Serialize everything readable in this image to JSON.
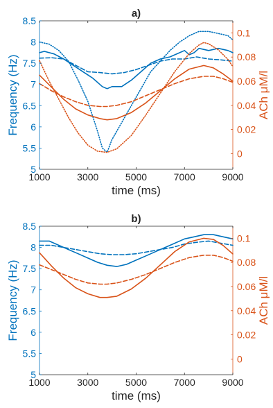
{
  "figure": {
    "colors": {
      "left_axis": "#0072BD",
      "right_axis": "#D95319",
      "text": "#262626",
      "background": "#ffffff"
    }
  },
  "chart_data": [
    {
      "type": "line",
      "title": "a)",
      "xlabel": "time (ms)",
      "ylabel_left": "Frequency (Hz)",
      "ylabel_right": "ACh μM/l",
      "xlim": [
        1000,
        9000
      ],
      "ylim_left": [
        5,
        8.5
      ],
      "ylim_right": [
        -0.013,
        0.11
      ],
      "xticks": [
        "1000",
        "3000",
        "5000",
        "7000",
        "9000"
      ],
      "xtick_values": [
        1000,
        3000,
        5000,
        7000,
        9000
      ],
      "yticks_left": [
        "5",
        "5.5",
        "6",
        "6.5",
        "7",
        "7.5",
        "8",
        "8.5"
      ],
      "ytick_values_left": [
        5,
        5.5,
        6,
        6.5,
        7,
        7.5,
        8,
        8.5
      ],
      "yticks_right": [
        "0",
        "0.02",
        "0.04",
        "0.06",
        "0.08",
        "0.1"
      ],
      "ytick_values_right": [
        0,
        0.02,
        0.04,
        0.06,
        0.08,
        0.1
      ],
      "grid": false,
      "legend": "none",
      "series": [
        {
          "axis": "left",
          "style": "solid",
          "color": "#0072BD",
          "x": [
            1000,
            1200,
            1600,
            2000,
            2400,
            2800,
            3200,
            3600,
            3800,
            4000,
            4400,
            4800,
            5200,
            5600,
            6000,
            6400,
            6800,
            7000,
            7200,
            7400,
            7600,
            8000,
            8400,
            8800,
            9000
          ],
          "y": [
            7.75,
            7.78,
            7.72,
            7.6,
            7.45,
            7.3,
            7.15,
            6.95,
            6.9,
            6.95,
            6.95,
            7.1,
            7.3,
            7.5,
            7.6,
            7.65,
            7.75,
            7.8,
            7.7,
            7.75,
            7.85,
            7.8,
            7.85,
            7.8,
            7.75
          ]
        },
        {
          "axis": "left",
          "style": "dashed",
          "color": "#0072BD",
          "x": [
            1000,
            1500,
            2000,
            2500,
            3000,
            3500,
            4000,
            4500,
            5000,
            5500,
            6000,
            6500,
            7000,
            7500,
            8000,
            8500,
            9000
          ],
          "y": [
            7.62,
            7.63,
            7.6,
            7.45,
            7.3,
            7.28,
            7.25,
            7.28,
            7.35,
            7.45,
            7.55,
            7.6,
            7.6,
            7.65,
            7.6,
            7.58,
            7.55
          ]
        },
        {
          "axis": "left",
          "style": "dotted",
          "color": "#0072BD",
          "x": [
            1000,
            1400,
            1800,
            2200,
            2600,
            3000,
            3400,
            3600,
            3800,
            4000,
            4400,
            4800,
            5200,
            5600,
            6000,
            6400,
            6800,
            7200,
            7600,
            8000,
            8400,
            8800,
            9000
          ],
          "y": [
            8.0,
            7.95,
            7.8,
            7.55,
            7.1,
            6.6,
            5.9,
            5.5,
            5.4,
            5.7,
            6.1,
            6.5,
            6.9,
            7.3,
            7.55,
            7.8,
            8.0,
            8.15,
            8.25,
            8.25,
            8.2,
            8.15,
            8.05
          ]
        },
        {
          "axis": "right",
          "style": "solid",
          "color": "#D95319",
          "x": [
            1000,
            1500,
            2000,
            2500,
            3000,
            3500,
            3800,
            4200,
            4800,
            5400,
            6000,
            6600,
            7200,
            7800,
            8200,
            8600,
            9000
          ],
          "y": [
            0.065,
            0.055,
            0.045,
            0.037,
            0.032,
            0.029,
            0.028,
            0.029,
            0.034,
            0.042,
            0.052,
            0.062,
            0.07,
            0.073,
            0.071,
            0.066,
            0.06
          ]
        },
        {
          "axis": "right",
          "style": "dashed",
          "color": "#D95319",
          "x": [
            1000,
            1500,
            2000,
            2500,
            3000,
            3500,
            3800,
            4200,
            4800,
            5400,
            6000,
            6600,
            7200,
            7800,
            8200,
            8600,
            9000
          ],
          "y": [
            0.058,
            0.052,
            0.047,
            0.043,
            0.04,
            0.039,
            0.039,
            0.04,
            0.043,
            0.048,
            0.053,
            0.058,
            0.062,
            0.064,
            0.064,
            0.062,
            0.059
          ]
        },
        {
          "axis": "right",
          "style": "dotted",
          "color": "#D95319",
          "x": [
            1000,
            1400,
            1800,
            2200,
            2600,
            3000,
            3400,
            3800,
            4200,
            4800,
            5400,
            6000,
            6600,
            7200,
            7600,
            7800,
            8000,
            8400,
            8800,
            9000
          ],
          "y": [
            0.077,
            0.06,
            0.045,
            0.03,
            0.017,
            0.007,
            0.002,
            0.001,
            0.004,
            0.015,
            0.032,
            0.05,
            0.068,
            0.083,
            0.09,
            0.092,
            0.091,
            0.086,
            0.078,
            0.072
          ]
        }
      ]
    },
    {
      "type": "line",
      "title": "b)",
      "xlabel": "time (ms)",
      "ylabel_left": "Frequency (Hz)",
      "ylabel_right": "ACh μM/l",
      "xlim": [
        1000,
        9000
      ],
      "ylim_left": [
        5,
        8.5
      ],
      "ylim_right": [
        -0.013,
        0.11
      ],
      "xticks": [
        "1000",
        "3000",
        "5000",
        "7000",
        "9000"
      ],
      "xtick_values": [
        1000,
        3000,
        5000,
        7000,
        9000
      ],
      "yticks_left": [
        "5",
        "5.5",
        "6",
        "6.5",
        "7",
        "7.5",
        "8",
        "8.5"
      ],
      "ytick_values_left": [
        5,
        5.5,
        6,
        6.5,
        7,
        7.5,
        8,
        8.5
      ],
      "yticks_right": [
        "0",
        "0.02",
        "0.04",
        "0.06",
        "0.08",
        "0.1"
      ],
      "ytick_values_right": [
        0,
        0.02,
        0.04,
        0.06,
        0.08,
        0.1
      ],
      "grid": false,
      "legend": "none",
      "series": [
        {
          "axis": "left",
          "style": "solid",
          "color": "#0072BD",
          "x": [
            1000,
            1400,
            1800,
            2200,
            2600,
            3000,
            3400,
            3800,
            4200,
            4600,
            5000,
            5400,
            5800,
            6200,
            6600,
            7000,
            7400,
            7800,
            8200,
            8600,
            9000
          ],
          "y": [
            8.15,
            8.15,
            8.05,
            7.95,
            7.85,
            7.75,
            7.65,
            7.58,
            7.55,
            7.6,
            7.7,
            7.8,
            7.9,
            8.0,
            8.1,
            8.2,
            8.25,
            8.3,
            8.3,
            8.25,
            8.2
          ]
        },
        {
          "axis": "left",
          "style": "dashed",
          "color": "#0072BD",
          "x": [
            1000,
            1500,
            2000,
            2500,
            3000,
            3500,
            4000,
            4500,
            5000,
            5500,
            6000,
            6500,
            7000,
            7500,
            8000,
            8500,
            9000
          ],
          "y": [
            8.05,
            8.05,
            8.0,
            7.95,
            7.9,
            7.85,
            7.83,
            7.83,
            7.85,
            7.9,
            7.95,
            8.0,
            8.08,
            8.12,
            8.15,
            8.1,
            8.05
          ]
        },
        {
          "axis": "right",
          "style": "solid",
          "color": "#D95319",
          "x": [
            1000,
            1500,
            2000,
            2500,
            3000,
            3500,
            3800,
            4200,
            4800,
            5400,
            6000,
            6600,
            7200,
            7800,
            8200,
            8600,
            9000
          ],
          "y": [
            0.088,
            0.077,
            0.067,
            0.059,
            0.054,
            0.051,
            0.051,
            0.052,
            0.058,
            0.067,
            0.078,
            0.089,
            0.097,
            0.1,
            0.099,
            0.094,
            0.087
          ]
        },
        {
          "axis": "right",
          "style": "dashed",
          "color": "#D95319",
          "x": [
            1000,
            1500,
            2000,
            2500,
            3000,
            3500,
            3800,
            4200,
            4800,
            5400,
            6000,
            6600,
            7200,
            7800,
            8200,
            8600,
            9000
          ],
          "y": [
            0.078,
            0.074,
            0.07,
            0.066,
            0.063,
            0.062,
            0.062,
            0.063,
            0.066,
            0.07,
            0.075,
            0.08,
            0.084,
            0.086,
            0.086,
            0.084,
            0.081
          ]
        }
      ]
    }
  ]
}
